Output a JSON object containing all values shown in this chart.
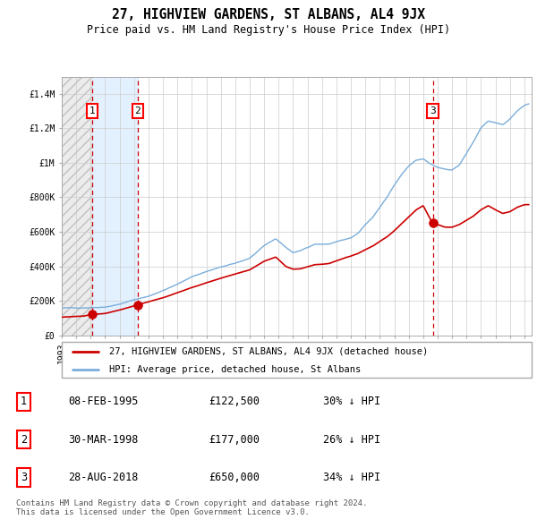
{
  "title": "27, HIGHVIEW GARDENS, ST ALBANS, AL4 9JX",
  "subtitle": "Price paid vs. HM Land Registry's House Price Index (HPI)",
  "property_label": "27, HIGHVIEW GARDENS, ST ALBANS, AL4 9JX (detached house)",
  "hpi_label": "HPI: Average price, detached house, St Albans",
  "transactions": [
    {
      "num": 1,
      "date": "08-FEB-1995",
      "date_decimal": 1995.11,
      "price": 122500,
      "pct": "30%",
      "dir": "↓"
    },
    {
      "num": 2,
      "date": "30-MAR-1998",
      "date_decimal": 1998.25,
      "price": 177000,
      "pct": "26%",
      "dir": "↓"
    },
    {
      "num": 3,
      "date": "28-AUG-2018",
      "date_decimal": 2018.66,
      "price": 650000,
      "pct": "34%",
      "dir": "↓"
    }
  ],
  "ylim": [
    0,
    1500000
  ],
  "yticks": [
    0,
    200000,
    400000,
    600000,
    800000,
    1000000,
    1200000,
    1400000
  ],
  "ytick_labels": [
    "£0",
    "£200K",
    "£400K",
    "£600K",
    "£800K",
    "£1M",
    "£1.2M",
    "£1.4M"
  ],
  "xlim_start": 1993.0,
  "xlim_end": 2025.5,
  "property_color": "#cc0000",
  "hpi_color": "#7aadda",
  "vline_color": "#cc0000",
  "shade_color": "#ddeeff",
  "background_color": "#ffffff",
  "grid_color": "#cccccc",
  "footer": "Contains HM Land Registry data © Crown copyright and database right 2024.\nThis data is licensed under the Open Government Licence v3.0.",
  "marker_color": "#cc0000",
  "marker_size": 7
}
